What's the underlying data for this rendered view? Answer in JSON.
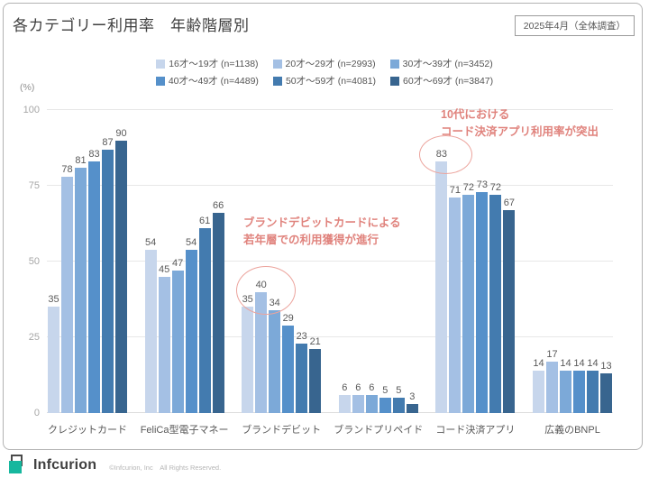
{
  "page": {
    "title": "各カテゴリー利用率　年齢階層別",
    "date_badge": "2025年4月（全体調査）",
    "footer": {
      "logo_text": "Infcurion",
      "copyright": "©Infcurion, Inc　All Rights Reserved."
    }
  },
  "colors": {
    "series": [
      "#c7d6ec",
      "#a4c0e4",
      "#7ca9d8",
      "#5590ca",
      "#437baf",
      "#38658f"
    ],
    "annotation_text": "#e0837d",
    "annotation_circle": "#eca49d",
    "data_label": "#595959",
    "axis_tick": "#a6a6a6",
    "logo_teal": "#16b79e"
  },
  "chart_data": {
    "type": "bar",
    "title": "各カテゴリー利用率　年齢階層別",
    "unit_label": "(%)",
    "categories": [
      "クレジットカード",
      "FeliCa型電子マネー",
      "ブランドデビット",
      "ブランドプリペイド",
      "コード決済アプリ",
      "広義のBNPL"
    ],
    "series": [
      {
        "name": "16才～19才 (n=1138)",
        "color": "#c7d6ec",
        "values": [
          35,
          54,
          35,
          6,
          83,
          14
        ]
      },
      {
        "name": "20才～29才 (n=2993)",
        "color": "#a4c0e4",
        "values": [
          78,
          45,
          40,
          6,
          71,
          17
        ]
      },
      {
        "name": "30才～39才 (n=3452)",
        "color": "#7ca9d8",
        "values": [
          81,
          47,
          34,
          6,
          72,
          14
        ]
      },
      {
        "name": "40才～49才 (n=4489)",
        "color": "#5590ca",
        "values": [
          83,
          54,
          29,
          5,
          73,
          14
        ]
      },
      {
        "name": "50才～59才 (n=4081)",
        "color": "#437baf",
        "values": [
          87,
          61,
          23,
          5,
          72,
          14
        ]
      },
      {
        "name": "60才～69才 (n=3847)",
        "color": "#38658f",
        "values": [
          90,
          66,
          21,
          3,
          67,
          13
        ]
      }
    ],
    "ylim": [
      0,
      100
    ],
    "yticks": [
      0,
      25,
      50,
      75,
      100
    ],
    "grid": true,
    "legend_position": "top",
    "annotations": [
      {
        "lines": [
          "ブランドデビットカードによる",
          "若年層での利用獲得が進行"
        ],
        "target": "ブランドデビット",
        "circled_value": 40
      },
      {
        "lines": [
          "10代における",
          "コード決済アプリ利用率が突出"
        ],
        "target": "コード決済アプリ",
        "circled_value": 83
      }
    ]
  }
}
